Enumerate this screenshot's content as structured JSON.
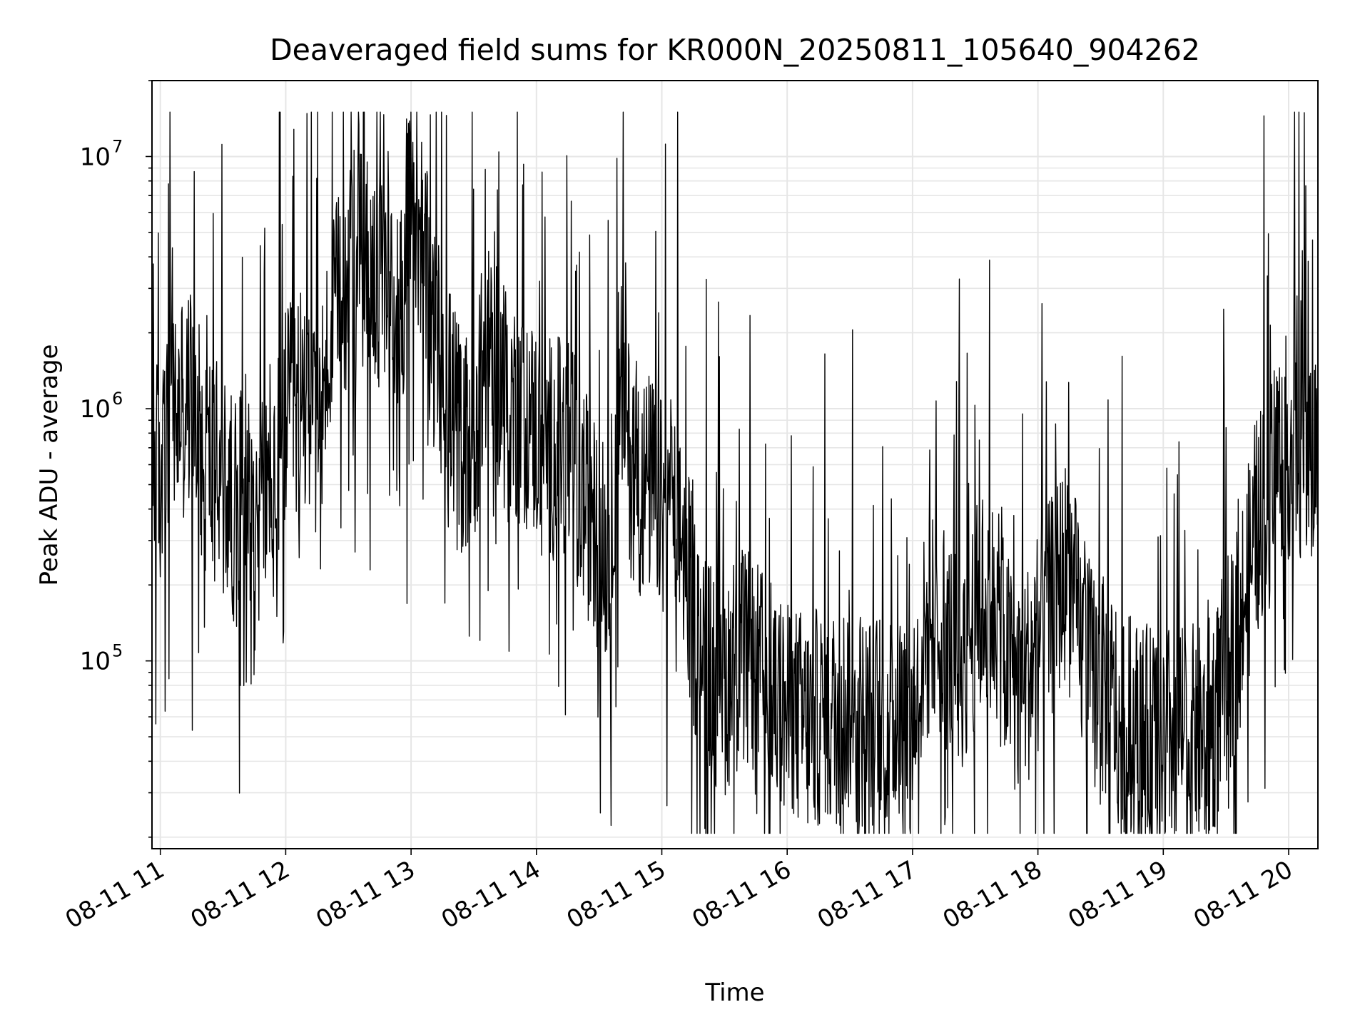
{
  "chart_data": {
    "type": "line",
    "title": "Deaveraged field sums for KR000N_20250811_105640_904262",
    "xlabel": "Time",
    "ylabel": "Peak ADU - average",
    "yscale": "log",
    "ylim": [
      18000,
      20000000
    ],
    "xlim": [
      "2025-08-11 10:56",
      "2025-08-11 20:14"
    ],
    "grid": true,
    "line_color": "#000000",
    "x_ticks": [
      "08-11 11",
      "08-11 12",
      "08-11 13",
      "08-11 14",
      "08-11 15",
      "08-11 16",
      "08-11 17",
      "08-11 18",
      "08-11 19",
      "08-11 20"
    ],
    "y_ticks": [
      {
        "base": "10",
        "exp": "5",
        "value": 100000
      },
      {
        "base": "10",
        "exp": "6",
        "value": 1000000
      },
      {
        "base": "10",
        "exp": "7",
        "value": 10000000
      }
    ],
    "series": [
      {
        "x": [
          "2025-08-11 10:56",
          "2025-08-11 11:00",
          "2025-08-11 11:05",
          "2025-08-11 11:10",
          "2025-08-11 11:15",
          "2025-08-11 11:20",
          "2025-08-11 11:25",
          "2025-08-11 11:30",
          "2025-08-11 11:35",
          "2025-08-11 11:40",
          "2025-08-11 11:45",
          "2025-08-11 11:50",
          "2025-08-11 11:55",
          "2025-08-11 12:00",
          "2025-08-11 12:05",
          "2025-08-11 12:10",
          "2025-08-11 12:15",
          "2025-08-11 12:20",
          "2025-08-11 12:25",
          "2025-08-11 12:30",
          "2025-08-11 12:35",
          "2025-08-11 12:40",
          "2025-08-11 12:45",
          "2025-08-11 12:50",
          "2025-08-11 12:55",
          "2025-08-11 13:00",
          "2025-08-11 13:05",
          "2025-08-11 13:10",
          "2025-08-11 13:15",
          "2025-08-11 13:20",
          "2025-08-11 13:25",
          "2025-08-11 13:30",
          "2025-08-11 13:35",
          "2025-08-11 13:40",
          "2025-08-11 13:45",
          "2025-08-11 13:50",
          "2025-08-11 13:55",
          "2025-08-11 14:00",
          "2025-08-11 14:05",
          "2025-08-11 14:10",
          "2025-08-11 14:15",
          "2025-08-11 14:20",
          "2025-08-11 14:25",
          "2025-08-11 14:30",
          "2025-08-11 14:35",
          "2025-08-11 14:40",
          "2025-08-11 14:45",
          "2025-08-11 14:50",
          "2025-08-11 14:55",
          "2025-08-11 15:00",
          "2025-08-11 15:05",
          "2025-08-11 15:10",
          "2025-08-11 15:15",
          "2025-08-11 15:20",
          "2025-08-11 15:25",
          "2025-08-11 15:30",
          "2025-08-11 15:35",
          "2025-08-11 15:40",
          "2025-08-11 15:45",
          "2025-08-11 15:50",
          "2025-08-11 15:55",
          "2025-08-11 16:00",
          "2025-08-11 16:05",
          "2025-08-11 16:10",
          "2025-08-11 16:15",
          "2025-08-11 16:20",
          "2025-08-11 16:25",
          "2025-08-11 16:30",
          "2025-08-11 16:35",
          "2025-08-11 16:40",
          "2025-08-11 16:45",
          "2025-08-11 16:50",
          "2025-08-11 16:55",
          "2025-08-11 17:00",
          "2025-08-11 17:05",
          "2025-08-11 17:10",
          "2025-08-11 17:15",
          "2025-08-11 17:20",
          "2025-08-11 17:25",
          "2025-08-11 17:30",
          "2025-08-11 17:35",
          "2025-08-11 17:40",
          "2025-08-11 17:45",
          "2025-08-11 17:50",
          "2025-08-11 17:55",
          "2025-08-11 18:00",
          "2025-08-11 18:05",
          "2025-08-11 18:10",
          "2025-08-11 18:15",
          "2025-08-11 18:20",
          "2025-08-11 18:25",
          "2025-08-11 18:30",
          "2025-08-11 18:35",
          "2025-08-11 18:40",
          "2025-08-11 18:45",
          "2025-08-11 18:50",
          "2025-08-11 18:55",
          "2025-08-11 19:00",
          "2025-08-11 19:05",
          "2025-08-11 19:10",
          "2025-08-11 19:15",
          "2025-08-11 19:20",
          "2025-08-11 19:25",
          "2025-08-11 19:30",
          "2025-08-11 19:35",
          "2025-08-11 19:40",
          "2025-08-11 19:45",
          "2025-08-11 19:50",
          "2025-08-11 19:55",
          "2025-08-11 20:00",
          "2025-08-11 20:05",
          "2025-08-11 20:10",
          "2025-08-11 20:14"
        ],
        "y": [
          700000,
          500000,
          1000000,
          900000,
          1200000,
          700000,
          600000,
          500000,
          400000,
          600000,
          300000,
          500000,
          400000,
          900000,
          1000000,
          1200000,
          800000,
          1500000,
          2500000,
          3500000,
          4000000,
          4000000,
          3000000,
          2500000,
          2500000,
          6000000,
          5000000,
          2000000,
          1500000,
          1000000,
          700000,
          800000,
          1500000,
          1800000,
          1200000,
          1000000,
          900000,
          800000,
          700000,
          700000,
          700000,
          500000,
          400000,
          300000,
          250000,
          1500000,
          600000,
          500000,
          500000,
          400000,
          350000,
          300000,
          150000,
          100000,
          90000,
          80000,
          100000,
          100000,
          90000,
          80000,
          70000,
          60000,
          60000,
          55000,
          60000,
          60000,
          60000,
          70000,
          60000,
          55000,
          60000,
          60000,
          60000,
          60000,
          110000,
          150000,
          120000,
          110000,
          100000,
          150000,
          180000,
          150000,
          100000,
          80000,
          90000,
          120000,
          150000,
          200000,
          250000,
          120000,
          90000,
          80000,
          70000,
          60000,
          55000,
          50000,
          50000,
          50000,
          50000,
          50000,
          50000,
          50000,
          60000,
          90000,
          120000,
          200000,
          350000,
          500000,
          700000,
          700000,
          700000,
          600000,
          700000
        ]
      }
    ]
  }
}
